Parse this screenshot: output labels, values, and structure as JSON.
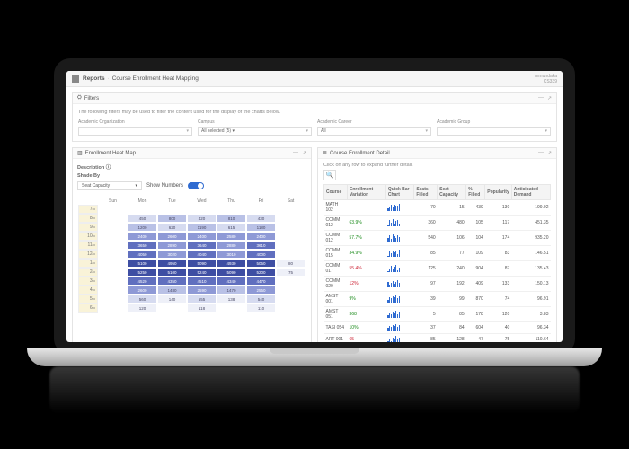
{
  "header": {
    "app_label": "Reports",
    "page_title": "Course Enrollment Heat Mapping",
    "user_line1": "mmundaka",
    "user_line2": "CS339"
  },
  "filters_panel": {
    "icon_label": "⛭",
    "title": "Filters",
    "note": "The following filters may be used to filter the content used for the display of the charts below.",
    "fields": [
      {
        "label": "Academic Organization",
        "value": ""
      },
      {
        "label": "Campus",
        "value": "All selected (5) ▾"
      },
      {
        "label": "Academic Career",
        "value": "All"
      },
      {
        "label": "Academic Group",
        "value": ""
      }
    ]
  },
  "heatmap_panel": {
    "title": "Enrollment Heat Map",
    "description_label": "Description ⓘ",
    "shade_by_label": "Shade By",
    "shade_by_value": "Seat Capacity",
    "show_numbers_label": "Show Numbers",
    "days": [
      "Sun",
      "Mon",
      "Tue",
      "Wed",
      "Thu",
      "Fri",
      "Sat"
    ],
    "hours": [
      "7",
      "8",
      "9",
      "10",
      "11",
      "12",
      "1",
      "2",
      "3",
      "4",
      "5",
      "6"
    ],
    "palette": {
      "none": "#ffffff",
      "0": "#eef0f8",
      "1": "#d6dbf0",
      "2": "#b9c1e6",
      "3": "#8e99d6",
      "4": "#606fbf",
      "5": "#3e4ea3"
    },
    "grid": [
      [
        null,
        null,
        null,
        null,
        null,
        null,
        null
      ],
      [
        null,
        [
          1,
          450
        ],
        [
          2,
          800
        ],
        [
          1,
          420
        ],
        [
          2,
          810
        ],
        [
          1,
          430
        ],
        null
      ],
      [
        null,
        [
          2,
          1200
        ],
        [
          1,
          620
        ],
        [
          2,
          1190
        ],
        [
          1,
          615
        ],
        [
          2,
          1180
        ],
        null
      ],
      [
        null,
        [
          3,
          2400
        ],
        [
          3,
          2600
        ],
        [
          3,
          2400
        ],
        [
          3,
          2580
        ],
        [
          3,
          2400
        ],
        null
      ],
      [
        null,
        [
          4,
          3650
        ],
        [
          3,
          2890
        ],
        [
          4,
          3640
        ],
        [
          3,
          2880
        ],
        [
          4,
          3610
        ],
        null
      ],
      [
        null,
        [
          4,
          4050
        ],
        [
          3,
          3020
        ],
        [
          4,
          4040
        ],
        [
          3,
          3010
        ],
        [
          4,
          4000
        ],
        null
      ],
      [
        null,
        [
          5,
          5100
        ],
        [
          5,
          4950
        ],
        [
          5,
          5090
        ],
        [
          5,
          4930
        ],
        [
          5,
          5050
        ],
        [
          0,
          80
        ]
      ],
      [
        null,
        [
          5,
          5250
        ],
        [
          5,
          5100
        ],
        [
          5,
          5240
        ],
        [
          5,
          5090
        ],
        [
          5,
          5200
        ],
        [
          0,
          75
        ]
      ],
      [
        null,
        [
          4,
          4520
        ],
        [
          4,
          4350
        ],
        [
          4,
          4510
        ],
        [
          4,
          4340
        ],
        [
          4,
          4470
        ],
        null
      ],
      [
        null,
        [
          3,
          2600
        ],
        [
          2,
          1480
        ],
        [
          3,
          2590
        ],
        [
          2,
          1470
        ],
        [
          3,
          2550
        ],
        null
      ],
      [
        null,
        [
          1,
          560
        ],
        [
          0,
          140
        ],
        [
          1,
          555
        ],
        [
          0,
          138
        ],
        [
          1,
          540
        ],
        null
      ],
      [
        null,
        [
          0,
          120
        ],
        null,
        [
          0,
          118
        ],
        null,
        [
          0,
          110
        ],
        null
      ]
    ]
  },
  "detail_panel": {
    "title": "Course Enrollment Detail",
    "note": "Click on any row to expand further detail.",
    "columns": [
      "Course",
      "Enrollment Variation",
      "Quick Bar Chart",
      "Seats Filled",
      "Seat Capacity",
      "% Filled",
      "Popularity",
      "Anticipated Demand"
    ],
    "rows": [
      {
        "course": "MATH 102",
        "var": null,
        "spark": [
          5,
          8,
          12,
          7,
          11,
          9,
          10,
          13
        ],
        "seats": 70,
        "cap": 15,
        "pct": "439",
        "pop": 130,
        "dem": "199.02"
      },
      {
        "course": "COMM 012",
        "var": "63.9%",
        "var_pos": true,
        "spark": [
          3,
          10,
          6,
          12,
          5,
          9,
          11,
          4
        ],
        "seats": 360,
        "cap": 480,
        "pct": "105",
        "pop": 117,
        "dem": "451.35"
      },
      {
        "course": "COMM 012",
        "var": "57.7%",
        "var_pos": true,
        "spark": [
          6,
          9,
          4,
          11,
          8,
          5,
          10,
          7
        ],
        "seats": 540,
        "cap": 106,
        "pct": "104",
        "pop": 174,
        "dem": "935.20"
      },
      {
        "course": "COMM 015",
        "var": "34.9%",
        "var_pos": true,
        "spark": [
          1,
          8,
          5,
          9,
          6,
          7,
          4,
          10
        ],
        "seats": 85,
        "cap": 77,
        "pct": "109",
        "pop": 83,
        "dem": "146.51"
      },
      {
        "course": "COMM 017",
        "var": "55.4%",
        "var_pos": false,
        "spark": [
          2,
          5,
          9,
          6,
          8,
          11,
          3,
          7
        ],
        "seats": 125,
        "cap": 240,
        "pct": "904",
        "pop": 87,
        "dem": "135.43"
      },
      {
        "course": "COMM 020",
        "var": "12%",
        "var_pos": false,
        "spark": [
          7,
          4,
          6,
          9,
          5,
          8,
          10,
          6
        ],
        "seats": 97,
        "cap": 192,
        "pct": "409",
        "pop": 133,
        "dem": "150.13"
      },
      {
        "course": "AMST 001",
        "var": "9%",
        "var_pos": true,
        "spark": [
          3,
          5,
          4,
          6,
          5,
          7,
          4,
          6
        ],
        "seats": 39,
        "cap": 99,
        "pct": "870",
        "pop": 74,
        "dem": "96.91"
      },
      {
        "course": "AMST 051",
        "var": "368",
        "var_pos": true,
        "spark": [
          2,
          4,
          3,
          5,
          4,
          6,
          3,
          5
        ],
        "seats": 5,
        "cap": 85,
        "pct": "178",
        "pop": 120,
        "dem": "3.83"
      },
      {
        "course": "TASI 054",
        "var": "10%",
        "var_pos": true,
        "spark": [
          4,
          6,
          5,
          7,
          6,
          8,
          5,
          7
        ],
        "seats": 37,
        "cap": 84,
        "pct": "604",
        "pop": 40,
        "dem": "96.34"
      },
      {
        "course": "ART 001",
        "var": "65",
        "var_pos": false,
        "spark": [
          1,
          2,
          1,
          3,
          2,
          4,
          2,
          3
        ],
        "seats": 85,
        "cap": 128,
        "pct": "47",
        "pop": 75,
        "dem": "110.64"
      }
    ]
  }
}
